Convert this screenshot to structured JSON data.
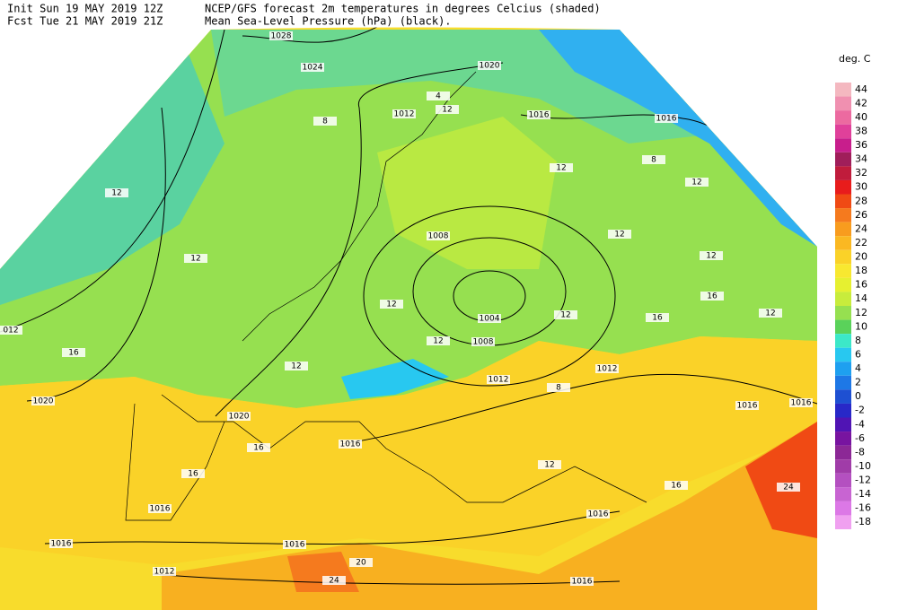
{
  "header": {
    "init": "Init  Sun 19 MAY 2019 12Z",
    "fcst": "Fcst Tue 21 MAY 2019 21Z",
    "title_line1": "NCEP/GFS forecast 2m temperatures in degrees Celcius (shaded)",
    "title_line2": "Mean Sea-Level Pressure (hPa) (black)."
  },
  "legend": {
    "title": "deg. C",
    "labels": [
      "44",
      "42",
      "40",
      "38",
      "36",
      "34",
      "32",
      "30",
      "28",
      "26",
      "24",
      "22",
      "20",
      "18",
      "16",
      "14",
      "12",
      "10",
      "8",
      "6",
      "4",
      "2",
      "0",
      "-2",
      "-4",
      "-6",
      "-8",
      "-10",
      "-12",
      "-14",
      "-16",
      "-18"
    ],
    "colors": [
      "#f4b8c0",
      "#f090b0",
      "#ec6aa0",
      "#e0409a",
      "#c81e8c",
      "#a01e5a",
      "#c01c3c",
      "#e81c1c",
      "#f04a14",
      "#f57a1e",
      "#f89c1e",
      "#fab822",
      "#fad228",
      "#f8e830",
      "#e6f030",
      "#c8ec3c",
      "#96e050",
      "#5ad25a",
      "#3ce8c8",
      "#28c8f0",
      "#1ea0f0",
      "#1e78e6",
      "#1e50d2",
      "#2828c8",
      "#5014b4",
      "#7814a0",
      "#8c2896",
      "#a03ca8",
      "#b450c0",
      "#c864d2",
      "#dc78e6",
      "#f0a0f0"
    ]
  },
  "map": {
    "isobar_labels": [
      "1028",
      "1024",
      "1020",
      "1016",
      "1016",
      "1012",
      "1008",
      "1004",
      "1008",
      "1012",
      "1012",
      "012",
      "1020",
      "1020",
      "1016",
      "1016",
      "1016",
      "1016",
      "1012",
      "1016",
      "1016",
      "1016",
      "1016"
    ],
    "temperature_labels": [
      "12",
      "12",
      "16",
      "12",
      "8",
      "12",
      "4",
      "12",
      "8",
      "12",
      "12",
      "12",
      "16",
      "12",
      "16",
      "12",
      "12",
      "12",
      "16",
      "16",
      "24",
      "24",
      "20",
      "16",
      "12",
      "8"
    ]
  }
}
